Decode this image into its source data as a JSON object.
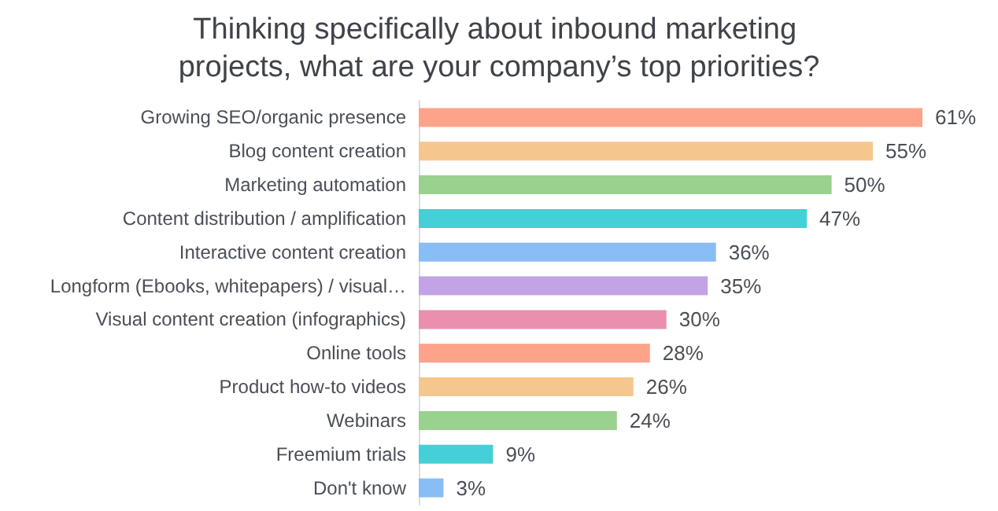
{
  "chart_data": {
    "type": "bar",
    "orientation": "horizontal",
    "title": "Thinking specifically about inbound marketing projects, what are your company’s top priorities?",
    "categories": [
      "Growing SEO/organic presence",
      "Blog content creation",
      "Marketing automation",
      "Content distribution / amplification",
      "Interactive content creation",
      "Longform (Ebooks, whitepapers) / visual…",
      "Visual content creation (infographics)",
      "Online tools",
      "Product how-to videos",
      "Webinars",
      "Freemium trials",
      "Don't know"
    ],
    "values": [
      61,
      55,
      50,
      47,
      36,
      35,
      30,
      28,
      26,
      24,
      9,
      3
    ],
    "value_labels": [
      "61%",
      "55%",
      "50%",
      "47%",
      "36%",
      "35%",
      "30%",
      "28%",
      "26%",
      "24%",
      "9%",
      "3%"
    ],
    "colors": [
      "#fca38a",
      "#f5c78e",
      "#99d18f",
      "#45cfd6",
      "#88bdf5",
      "#c3a3e6",
      "#ea8fad",
      "#fca38a",
      "#f5c78e",
      "#99d18f",
      "#45cfd6",
      "#88bdf5"
    ],
    "grid": false
  }
}
